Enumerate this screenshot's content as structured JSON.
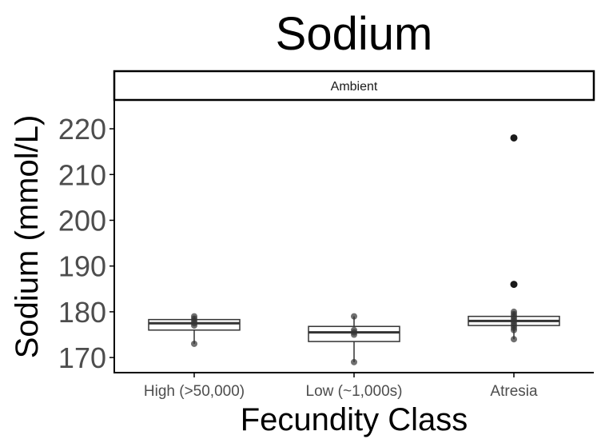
{
  "chart_data": {
    "type": "box",
    "title": "Sodium",
    "facet_label": "Ambient",
    "xlabel": "Fecundity Class",
    "ylabel": "Sodium (mmol/L)",
    "categories": [
      "High (>50,000)",
      "Low (~1,000s)",
      "Atresia"
    ],
    "ylim": [
      166.7,
      226.3
    ],
    "yticks": [
      170,
      180,
      190,
      200,
      210,
      220
    ],
    "grid": false,
    "boxes": [
      {
        "category": "High (>50,000)",
        "whisker_low": 173,
        "q1": 176,
        "median": 177.5,
        "q3": 178.3,
        "whisker_high": 179,
        "points": [
          173,
          177,
          177.5,
          178,
          178.5,
          179
        ],
        "outliers": []
      },
      {
        "category": "Low (~1,000s)",
        "whisker_low": 169,
        "q1": 173.5,
        "median": 175.5,
        "q3": 176.8,
        "whisker_high": 179,
        "points": [
          169,
          175,
          175.5,
          176,
          179
        ],
        "outliers": []
      },
      {
        "category": "Atresia",
        "whisker_low": 174,
        "q1": 177,
        "median": 178,
        "q3": 179,
        "whisker_high": 180,
        "points": [
          174,
          176,
          176.5,
          177,
          177.5,
          178,
          178.5,
          179,
          179.5,
          180
        ],
        "outliers": [
          186,
          218
        ]
      }
    ],
    "colors": {
      "box_line": "#333333",
      "point": "#333333",
      "axis": "#000000",
      "tick_label": "#4d4d4d"
    }
  }
}
